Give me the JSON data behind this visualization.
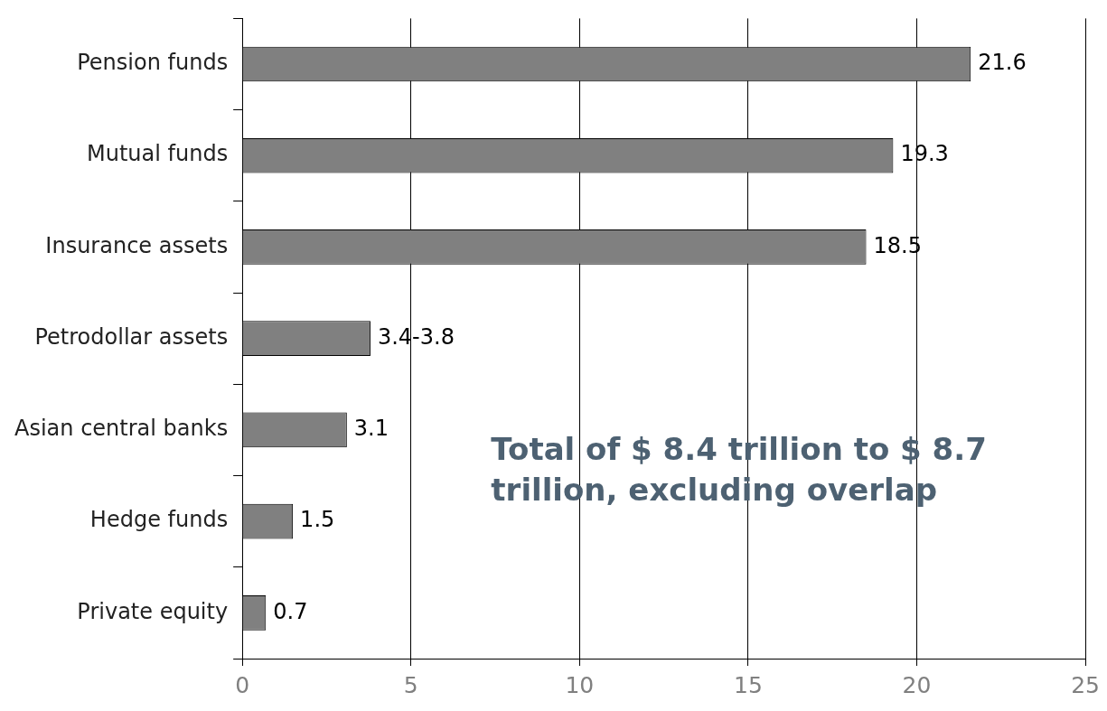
{
  "chart_data": {
    "type": "bar",
    "orientation": "horizontal",
    "categories": [
      "Pension funds",
      "Mutual funds",
      "Insurance assets",
      "Petrodollar assets",
      "Asian central banks",
      "Hedge funds",
      "Private equity"
    ],
    "values": [
      21.6,
      19.3,
      18.5,
      3.8,
      3.1,
      1.5,
      0.7
    ],
    "value_labels": [
      "21.6",
      "19.3",
      "18.5",
      "3.4-3.8",
      "3.1",
      "1.5",
      "0.7"
    ],
    "color": "#808080",
    "xlim": [
      0,
      25
    ],
    "xticks": [
      0,
      5,
      10,
      15,
      20,
      25
    ],
    "grid": "x",
    "legend": false,
    "annotations": [
      "Total of $ 8.4 trillion to $ 8.7 trillion, excluding overlap"
    ]
  }
}
